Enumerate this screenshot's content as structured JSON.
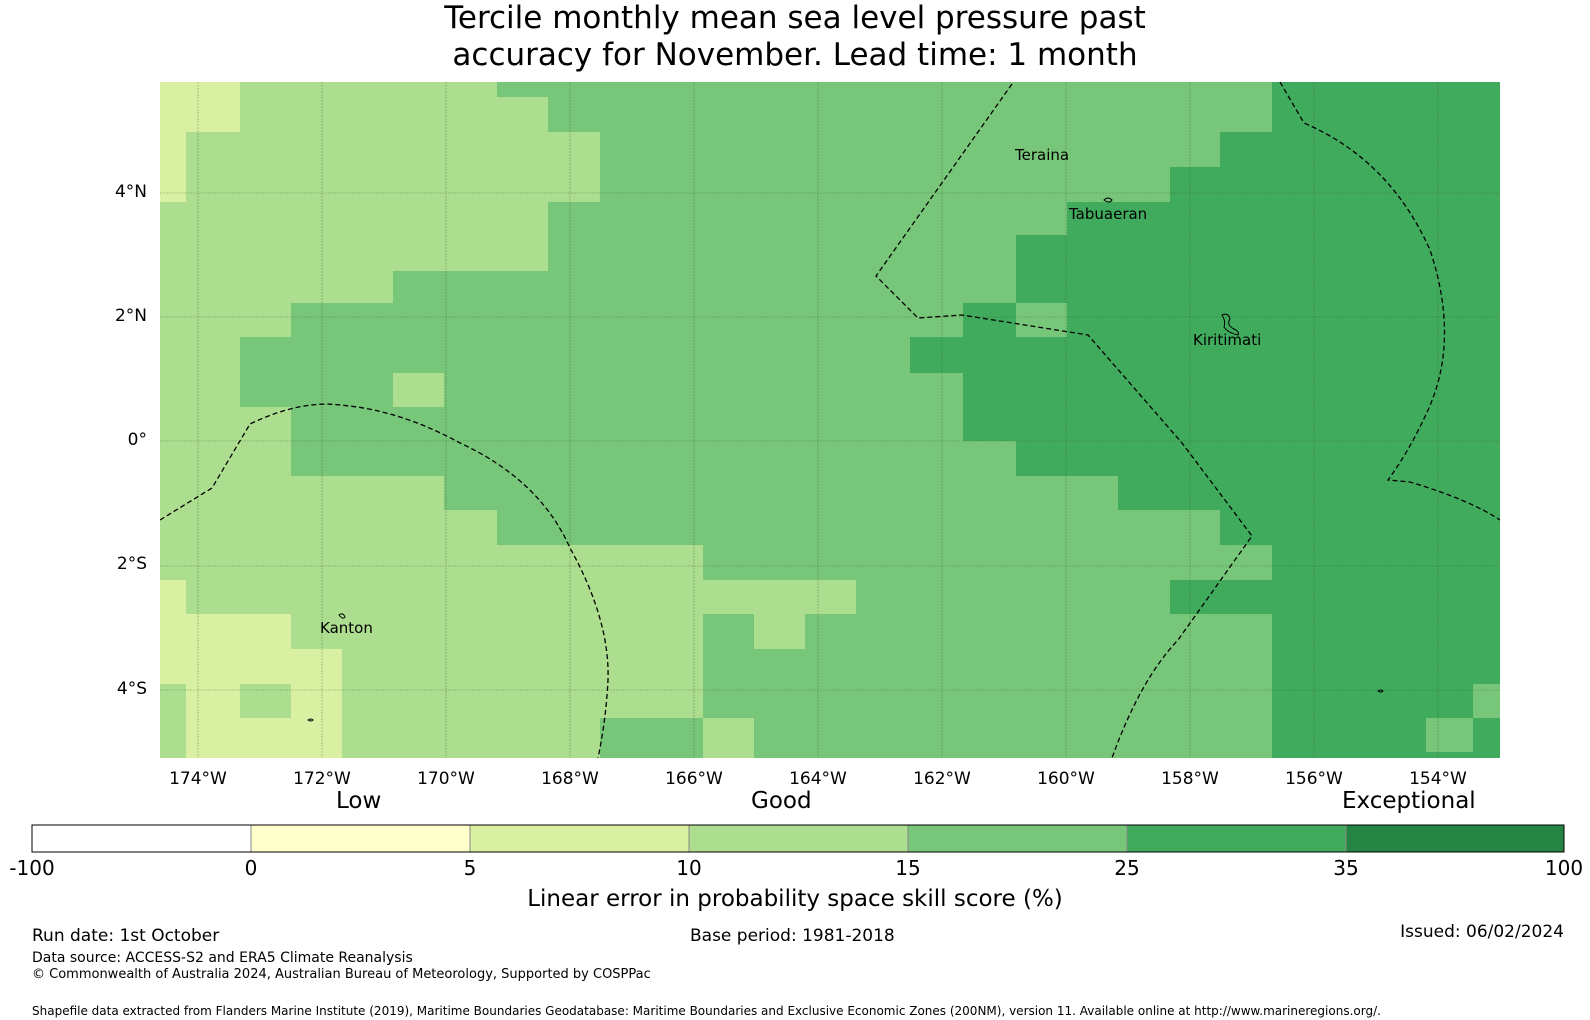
{
  "title_line1": "Tercile monthly mean sea level pressure past",
  "title_line2": "accuracy for November. Lead time: 1 month",
  "map": {
    "lat_labels": [
      "4°N",
      "2°N",
      "0°",
      "2°S",
      "4°S"
    ],
    "lon_labels": [
      "174°W",
      "172°W",
      "170°W",
      "168°W",
      "166°W",
      "164°W",
      "162°W",
      "160°W",
      "158°W",
      "156°W",
      "154°W"
    ],
    "places": [
      "Teraina",
      "Tabuaeran",
      "Kiritimati",
      "Kanton"
    ]
  },
  "colorbar": {
    "categories": [
      "Low",
      "Good",
      "Exceptional"
    ],
    "ticks": [
      "-100",
      "0",
      "5",
      "10",
      "15",
      "25",
      "35",
      "100"
    ],
    "colors": [
      "#ffffff",
      "#ffffcc",
      "#d9f0a3",
      "#addd8e",
      "#78c679",
      "#41ab5d",
      "#238443"
    ],
    "label": "Linear error in probability space skill score (%)"
  },
  "footer": {
    "run_date": "Run date: 1st October",
    "base_period": "Base period: 1981-2018",
    "issued": "Issued: 06/02/2024",
    "data_source": "Data source: ACCESS-S2 and ERA5 Climate Reanalysis",
    "copyright": "© Commonwealth of Australia 2024, Australian Bureau of Meteorology, Supported by COSPPac",
    "shapefile": "Shapefile data extracted from Flanders Marine Institute (2019), Maritime Boundaries Geodatabase: Maritime Boundaries and Exclusive Economic Zones (200NM), version 11. Available online at http://www.marineregions.org/."
  }
}
